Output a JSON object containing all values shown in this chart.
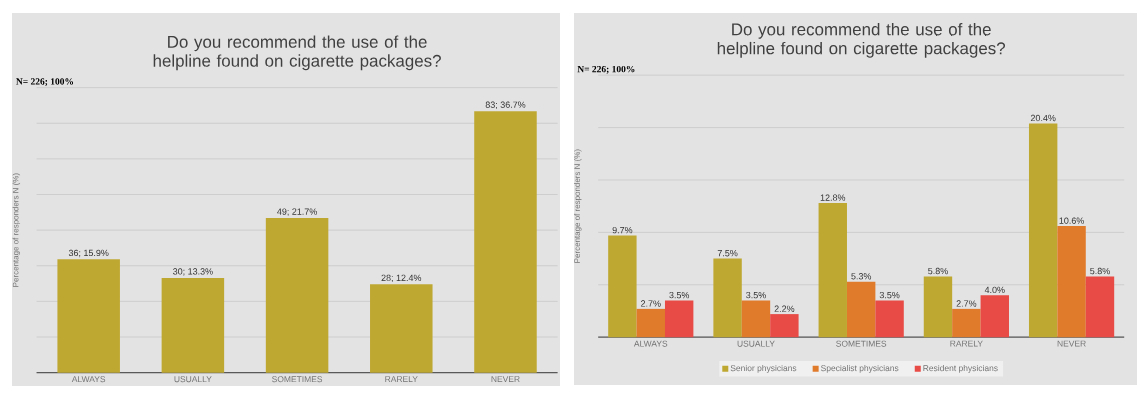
{
  "chart_data": [
    {
      "type": "bar",
      "title": "Do you recommend the use of the helpline found on cigarette packages?",
      "ylabel": "Percentage of responders N (%)",
      "annotations": [
        "N= 226; 100%"
      ],
      "categories": [
        "ALWAYS",
        "USUALLY",
        "SOMETIMES",
        "RARELY",
        "NEVER"
      ],
      "values": [
        15.9,
        13.3,
        21.7,
        12.4,
        36.7
      ],
      "color": "#bfa832",
      "value_labels": [
        "36; 15.9%",
        "30; 13.3%",
        "49; 21.7%",
        "28; 12.4%",
        "83; 36.7%"
      ],
      "ylim": [
        0,
        40
      ],
      "yticks": [
        {
          "value": 0,
          "label": null
        },
        {
          "value": 5,
          "label": null
        },
        {
          "value": 10,
          "label": null
        },
        {
          "value": 15,
          "label": null
        },
        {
          "value": 20,
          "label": null
        },
        {
          "value": 25,
          "label": null
        },
        {
          "value": 30,
          "label": null
        },
        {
          "value": 35,
          "label": null
        },
        {
          "value": 40,
          "label": null
        }
      ],
      "grid": "y",
      "tick_labels": "x"
    },
    {
      "type": "bar",
      "title": "Do you recommend the use of the helpline found on cigarette packages?",
      "ylabel": "Percentage of responders N (%)",
      "annotations": [
        "N= 226; 100%"
      ],
      "categories": [
        "ALWAYS",
        "USUALLY",
        "SOMETIMES",
        "RARELY",
        "NEVER"
      ],
      "series": [
        {
          "name": "Senior physicians",
          "color": "#bfa832",
          "values": [
            9.7,
            7.5,
            12.8,
            5.8,
            20.4
          ],
          "value_labels": [
            "9.7%",
            "7.5%",
            "12.8%",
            "5.8%",
            "20.4%"
          ]
        },
        {
          "name": "Specialist physicians",
          "color": "#e07b2c",
          "values": [
            2.7,
            3.5,
            5.3,
            2.7,
            10.6
          ],
          "value_labels": [
            "2.7%",
            "3.5%",
            "5.3%",
            "2.7%",
            "10.6%"
          ]
        },
        {
          "name": "Resident physicians",
          "color": "#e84a45",
          "values": [
            3.5,
            2.2,
            3.5,
            4.0,
            5.8
          ],
          "value_labels": [
            "3.5%",
            "2.2%",
            "3.5%",
            "4.0%",
            "5.8%"
          ]
        }
      ],
      "ylim": [
        0,
        25
      ],
      "yticks": [
        {
          "value": 0,
          "label": null
        },
        {
          "value": 5,
          "label": null
        },
        {
          "value": 10,
          "label": null
        },
        {
          "value": 15,
          "label": null
        },
        {
          "value": 20,
          "label": null
        },
        {
          "value": 25,
          "label": null
        }
      ],
      "grid": "y",
      "tick_labels": "x",
      "legend": "bottom"
    }
  ]
}
